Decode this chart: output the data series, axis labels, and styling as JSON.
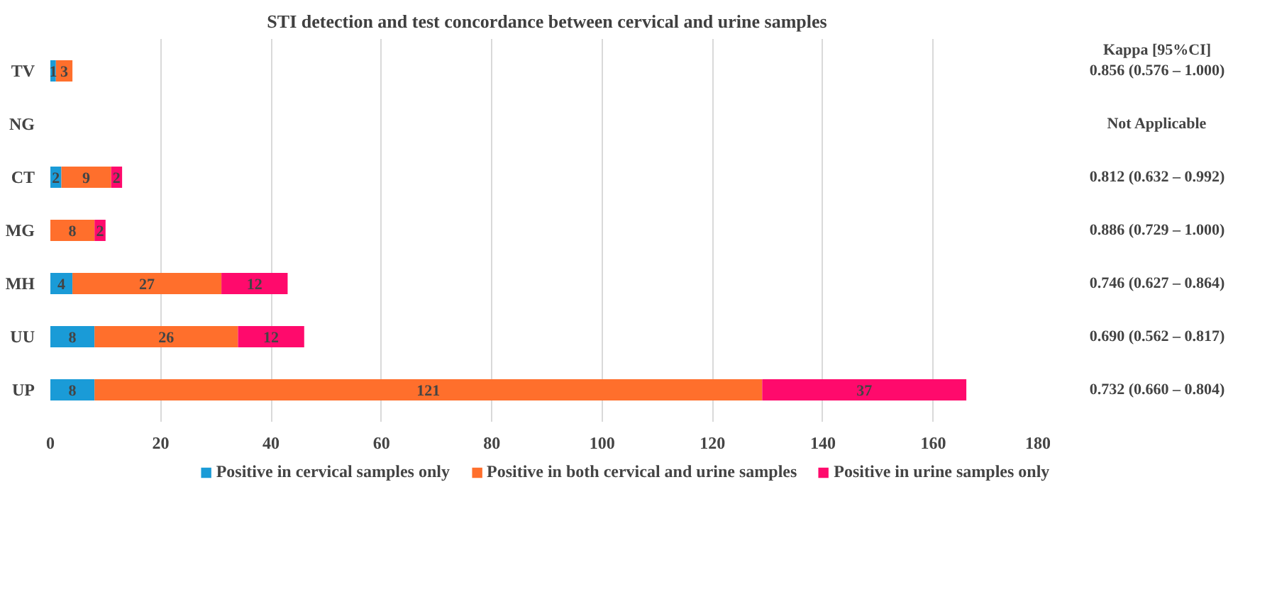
{
  "chart_data": {
    "type": "bar",
    "orientation": "horizontal",
    "stacked": true,
    "title": "STI detection and test concordance between cervical and urine samples",
    "categories": [
      "TV",
      "NG",
      "CT",
      "MG",
      "MH",
      "UU",
      "UP"
    ],
    "series": [
      {
        "name": "Positive in cervical samples only",
        "color": "#1a9bd7",
        "values": [
          1,
          0,
          2,
          0,
          4,
          8,
          8
        ],
        "value_labels": [
          "1",
          null,
          "2",
          null,
          "4",
          "8",
          "8"
        ]
      },
      {
        "name": "Positive in both cervical and urine samples",
        "color": "#ff6f2c",
        "values": [
          3,
          0,
          9,
          8,
          27,
          26,
          121
        ],
        "value_labels": [
          "3",
          null,
          "9",
          "8",
          "27",
          "26",
          "121"
        ]
      },
      {
        "name": "Positive in urine samples only",
        "color": "#ff0a6c",
        "values": [
          0,
          0,
          2,
          2,
          12,
          12,
          37
        ],
        "value_labels": [
          null,
          null,
          "2",
          "2",
          "12",
          "12",
          "37"
        ]
      }
    ],
    "xlim": [
      0,
      180
    ],
    "xticks": [
      0,
      20,
      40,
      60,
      80,
      100,
      120,
      140,
      160,
      180
    ],
    "grid": "x",
    "legend": "bottom",
    "annotations": [
      "Kappa [95%CI]",
      "0.856 (0.576 – 1.000)",
      "Not Applicable",
      "0.812 (0.632 – 0.992)",
      "0.886 (0.729 – 1.000)",
      "0.746 (0.627 – 0.864)",
      "0.690 (0.562 – 0.817)",
      "0.732 (0.660 – 0.804)"
    ]
  }
}
